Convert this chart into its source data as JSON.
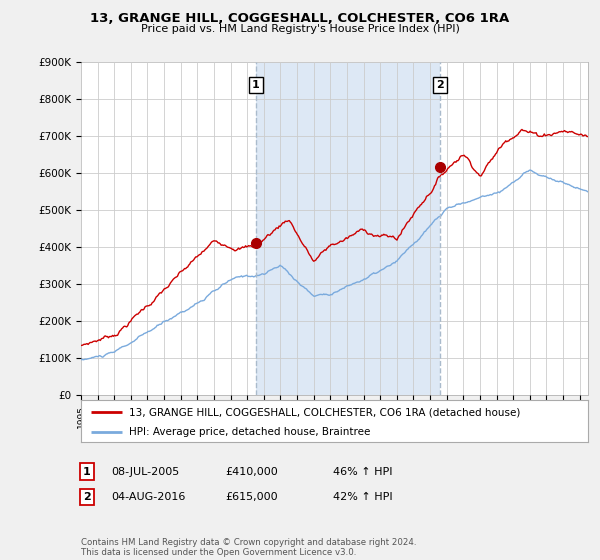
{
  "title": "13, GRANGE HILL, COGGESHALL, COLCHESTER, CO6 1RA",
  "subtitle": "Price paid vs. HM Land Registry's House Price Index (HPI)",
  "ylim": [
    0,
    900000
  ],
  "yticks": [
    0,
    100000,
    200000,
    300000,
    400000,
    500000,
    600000,
    700000,
    800000,
    900000
  ],
  "ytick_labels": [
    "£0",
    "£100K",
    "£200K",
    "£300K",
    "£400K",
    "£500K",
    "£600K",
    "£700K",
    "£800K",
    "£900K"
  ],
  "bg_color": "#f0f0f0",
  "plot_bg_color": "#ffffff",
  "shade_color": "#dde8f5",
  "sale1_date_num": 2005.52,
  "sale1_price": 410000,
  "sale2_date_num": 2016.59,
  "sale2_price": 615000,
  "legend_line1": "13, GRANGE HILL, COGGESHALL, COLCHESTER, CO6 1RA (detached house)",
  "legend_line2": "HPI: Average price, detached house, Braintree",
  "annotation1_date": "08-JUL-2005",
  "annotation1_price": "£410,000",
  "annotation1_hpi": "46% ↑ HPI",
  "annotation2_date": "04-AUG-2016",
  "annotation2_price": "£615,000",
  "annotation2_hpi": "42% ↑ HPI",
  "footer": "Contains HM Land Registry data © Crown copyright and database right 2024.\nThis data is licensed under the Open Government Licence v3.0.",
  "red_color": "#cc0000",
  "blue_color": "#7aaadd",
  "vline_color": "#aabbcc",
  "marker_color": "#aa0000",
  "xlim_left": 1995,
  "xlim_right": 2025.5
}
